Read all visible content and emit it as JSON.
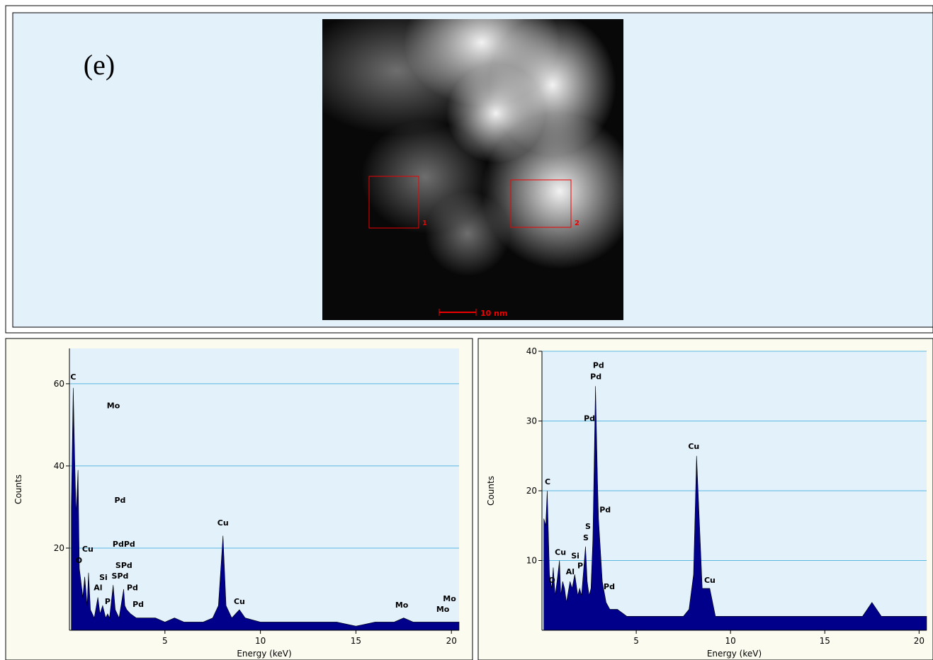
{
  "panel": {
    "label": "(e)",
    "regions": [
      "1",
      "2"
    ],
    "scale_bar": "10 nm"
  },
  "chart_data": [
    {
      "type": "area",
      "xlabel": "Energy (keV)",
      "ylabel": "Counts",
      "color": "#00008b",
      "grid": true,
      "xlim": [
        0,
        20.4
      ],
      "ylim": [
        0,
        68.6
      ],
      "xticks": [
        5,
        10,
        15,
        20
      ],
      "yticks": [
        20,
        40,
        60
      ],
      "x": [
        0.1,
        0.2,
        0.28,
        0.35,
        0.45,
        0.52,
        0.6,
        0.7,
        0.8,
        0.93,
        1.0,
        1.1,
        1.2,
        1.3,
        1.49,
        1.6,
        1.74,
        1.9,
        2.0,
        2.1,
        2.29,
        2.4,
        2.5,
        2.6,
        2.84,
        2.9,
        3.0,
        3.2,
        3.5,
        4,
        4.5,
        5,
        5.5,
        6,
        6.5,
        7,
        7.5,
        7.8,
        8.04,
        8.2,
        8.5,
        8.9,
        9.2,
        10,
        11,
        12,
        13,
        14,
        15,
        16,
        17,
        17.5,
        18,
        19,
        20,
        20.4
      ],
      "values": [
        30,
        59,
        41,
        28,
        39,
        15,
        12,
        8,
        13,
        6,
        14,
        5,
        4,
        3,
        8,
        4,
        6,
        3,
        4,
        3,
        11,
        5,
        4,
        3,
        10,
        6,
        5,
        4,
        3,
        3,
        3,
        2,
        3,
        2,
        2,
        2,
        3,
        6,
        23,
        6,
        3,
        5,
        3,
        2,
        2,
        2,
        2,
        2,
        1,
        2,
        2,
        3,
        2,
        2,
        2,
        2
      ],
      "annotations": [
        {
          "text": "C",
          "x": 0.2,
          "y": 61
        },
        {
          "text": "Mo",
          "x": 2.3,
          "y": 54
        },
        {
          "text": "Pd",
          "x": 2.65,
          "y": 31
        },
        {
          "text": "PdPd",
          "x": 2.85,
          "y": 20.3
        },
        {
          "text": "SPd",
          "x": 2.85,
          "y": 15.2
        },
        {
          "text": "SPd",
          "x": 2.65,
          "y": 12.6
        },
        {
          "text": "Si",
          "x": 1.78,
          "y": 12.2
        },
        {
          "text": "Al",
          "x": 1.5,
          "y": 9.7
        },
        {
          "text": "P",
          "x": 2.0,
          "y": 6.4
        },
        {
          "text": "Pd",
          "x": 3.3,
          "y": 9.7
        },
        {
          "text": "Pd",
          "x": 3.6,
          "y": 5.7
        },
        {
          "text": "O",
          "x": 0.5,
          "y": 16.4
        },
        {
          "text": "Cu",
          "x": 0.96,
          "y": 19.1
        },
        {
          "text": "Cu",
          "x": 8.04,
          "y": 25.5
        },
        {
          "text": "Cu",
          "x": 8.9,
          "y": 6.4
        },
        {
          "text": "Mo",
          "x": 17.4,
          "y": 5.5
        },
        {
          "text": "Mo",
          "x": 19.9,
          "y": 7.1
        },
        {
          "text": "Mo",
          "x": 19.55,
          "y": 4.5
        }
      ]
    },
    {
      "type": "area",
      "xlabel": "Energy (keV)",
      "ylabel": "Counts",
      "color": "#00008b",
      "grid": true,
      "xlim": [
        0,
        20.4
      ],
      "ylim": [
        0,
        40
      ],
      "xticks": [
        5,
        10,
        15,
        20
      ],
      "yticks": [
        10,
        20,
        30,
        40
      ],
      "x": [
        0.1,
        0.2,
        0.28,
        0.4,
        0.52,
        0.6,
        0.7,
        0.8,
        0.93,
        1.0,
        1.1,
        1.2,
        1.3,
        1.49,
        1.6,
        1.74,
        1.9,
        2.0,
        2.1,
        2.31,
        2.4,
        2.5,
        2.6,
        2.7,
        2.84,
        2.95,
        3.0,
        3.2,
        3.4,
        3.6,
        4,
        4.5,
        5,
        6,
        7,
        7.5,
        7.8,
        8.04,
        8.2,
        8.5,
        8.9,
        9.2,
        10,
        11,
        12,
        13,
        14,
        15,
        16,
        17,
        17.5,
        18,
        19,
        20,
        20.4
      ],
      "values": [
        16,
        15,
        20,
        8,
        6,
        9,
        5,
        7,
        10,
        5,
        7,
        6,
        4,
        7,
        6,
        8,
        5,
        6,
        5,
        12,
        7,
        5,
        6,
        13,
        35,
        21,
        16,
        7,
        4,
        3,
        3,
        2,
        2,
        2,
        2,
        2,
        3,
        8,
        25,
        6,
        6,
        2,
        2,
        2,
        2,
        2,
        2,
        2,
        2,
        2,
        4,
        2,
        2,
        2,
        2
      ],
      "annotations": [
        {
          "text": "C",
          "x": 0.3,
          "y": 20.9
        },
        {
          "text": "Cu",
          "x": 0.98,
          "y": 10.8
        },
        {
          "text": "O",
          "x": 0.53,
          "y": 6.8
        },
        {
          "text": "Al",
          "x": 1.5,
          "y": 8.0
        },
        {
          "text": "Si",
          "x": 1.77,
          "y": 10.3
        },
        {
          "text": "P",
          "x": 2.03,
          "y": 8.9
        },
        {
          "text": "S",
          "x": 2.44,
          "y": 14.5
        },
        {
          "text": "S",
          "x": 2.33,
          "y": 12.9
        },
        {
          "text": "Pd",
          "x": 3.0,
          "y": 37.6
        },
        {
          "text": "Pd",
          "x": 2.86,
          "y": 36.0
        },
        {
          "text": "Pd",
          "x": 2.52,
          "y": 30
        },
        {
          "text": "Pd",
          "x": 3.35,
          "y": 16.9
        },
        {
          "text": "Pd",
          "x": 3.57,
          "y": 5.9
        },
        {
          "text": "Cu",
          "x": 8.05,
          "y": 26
        },
        {
          "text": "Cu",
          "x": 8.9,
          "y": 6.8
        }
      ]
    }
  ]
}
